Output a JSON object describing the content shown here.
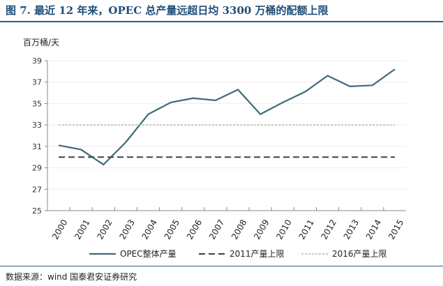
{
  "title": "图 7. 最近 12 年来，OPEC 总产量远超日均 3300 万桶的配额上限",
  "source": "数据来源：wind  国泰君安证券研究",
  "colors": {
    "main": "#3d6b78",
    "limit2011": "#404040",
    "limit2016": "#a6a6a6"
  },
  "chart_data": {
    "type": "line",
    "title": "",
    "ylabel": "百万桶/天",
    "xlabel": "",
    "ylim": [
      25,
      39
    ],
    "yticks": [
      "25",
      "27",
      "29",
      "31",
      "33",
      "35",
      "37",
      "39"
    ],
    "categories": [
      "2000",
      "2001",
      "2002",
      "2003",
      "2004",
      "2005",
      "2006",
      "2007",
      "2008",
      "2009",
      "2010",
      "2011",
      "2012",
      "2013",
      "2014",
      "2015"
    ],
    "series": [
      {
        "name": "OPEC整体产量",
        "style": "solid",
        "values": [
          31.1,
          30.7,
          29.3,
          31.4,
          34.0,
          35.1,
          35.5,
          35.3,
          36.3,
          34.0,
          35.1,
          36.1,
          37.6,
          36.6,
          36.7,
          38.2
        ]
      },
      {
        "name": "2011产量上限",
        "style": "dashed",
        "values": [
          30,
          30,
          30,
          30,
          30,
          30,
          30,
          30,
          30,
          30,
          30,
          30,
          30,
          30,
          30,
          30
        ]
      },
      {
        "name": "2016产量上限",
        "style": "dotted",
        "values": [
          33,
          33,
          33,
          33,
          33,
          33,
          33,
          33,
          33,
          33,
          33,
          33,
          33,
          33,
          33,
          33
        ]
      }
    ],
    "grid": true,
    "legend": "bottom"
  }
}
